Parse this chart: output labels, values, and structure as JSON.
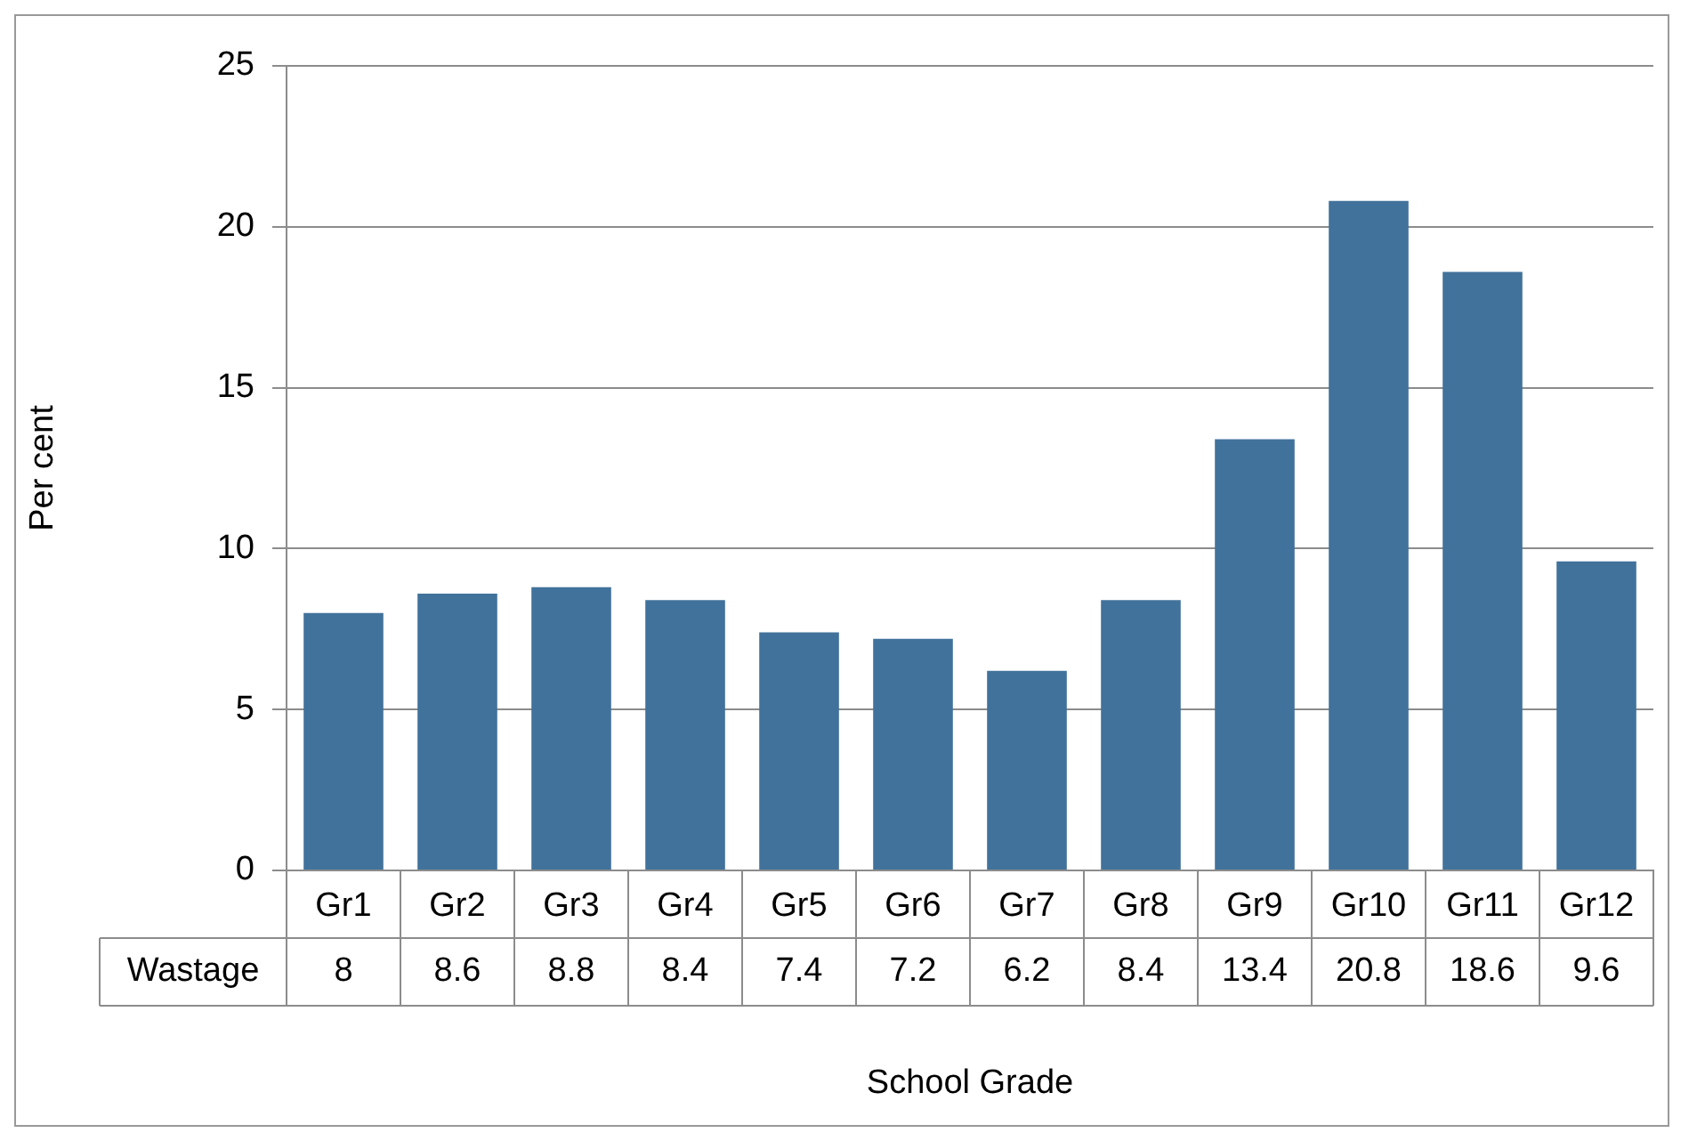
{
  "chart_data": {
    "type": "bar",
    "xlabel": "School Grade",
    "ylabel": "Per cent",
    "categories": [
      "Gr1",
      "Gr2",
      "Gr3",
      "Gr4",
      "Gr5",
      "Gr6",
      "Gr7",
      "Gr8",
      "Gr9",
      "Gr10",
      "Gr11",
      "Gr12"
    ],
    "series": [
      {
        "name": "Wastage",
        "color": "#41729b",
        "values": [
          8,
          8.6,
          8.8,
          8.4,
          7.4,
          7.2,
          6.2,
          8.4,
          13.4,
          20.8,
          18.6,
          9.6
        ]
      }
    ],
    "ylim": [
      0,
      25
    ],
    "yticks": [
      0,
      5,
      10,
      15,
      20,
      25
    ],
    "grid": "y",
    "data_labels": true,
    "legend": false
  }
}
